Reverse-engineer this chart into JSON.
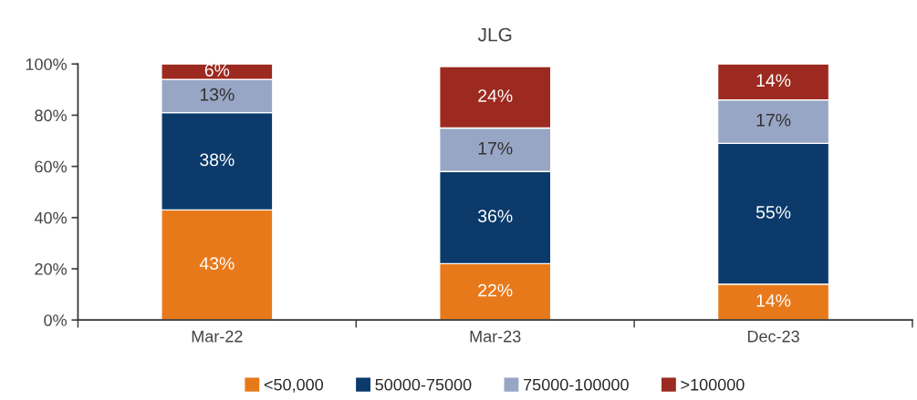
{
  "chart_data": {
    "type": "bar",
    "title": "JLG",
    "stacked": true,
    "categories": [
      "Mar-22",
      "Mar-23",
      "Dec-23"
    ],
    "series": [
      {
        "name": "<50,000",
        "color": "#e8791a",
        "values": [
          43,
          22,
          14
        ],
        "value_labels": [
          "43%",
          "22%",
          "14%"
        ]
      },
      {
        "name": "50000-75000",
        "color": "#0b3a6b",
        "values": [
          38,
          36,
          55
        ],
        "value_labels": [
          "38%",
          "36%",
          "55%"
        ]
      },
      {
        "name": "75000-100000",
        "color": "#97a6c4",
        "values": [
          13,
          17,
          17
        ],
        "value_labels": [
          "13%",
          "17%",
          "17%"
        ]
      },
      {
        "name": ">100000",
        "color": "#9c2a20",
        "values": [
          6,
          24,
          14
        ],
        "value_labels": [
          "6%",
          "24%",
          "14%"
        ]
      }
    ],
    "ylim": [
      0,
      100
    ],
    "yticks": [
      {
        "value": 0,
        "label": "0%"
      },
      {
        "value": 20,
        "label": "20%"
      },
      {
        "value": 40,
        "label": "40%"
      },
      {
        "value": 60,
        "label": "60%"
      },
      {
        "value": 80,
        "label": "80%"
      },
      {
        "value": 100,
        "label": "100%"
      }
    ],
    "legend": "bottom",
    "grid": false
  }
}
